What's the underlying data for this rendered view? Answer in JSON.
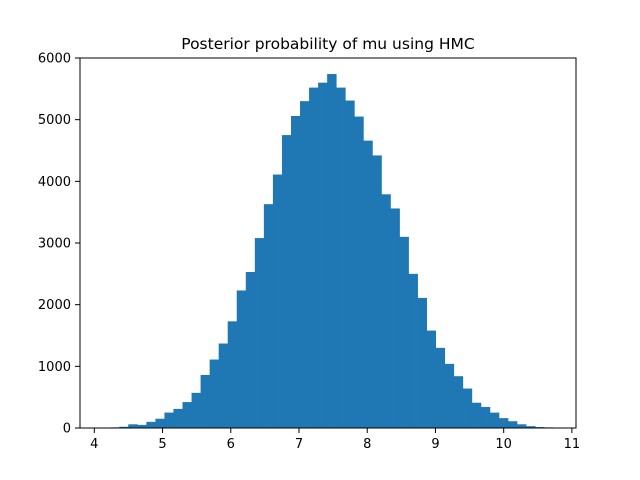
{
  "chart_data": {
    "type": "bar",
    "title": "Posterior probability of mu using HMC",
    "xlabel": "",
    "ylabel": "",
    "xlim": [
      3.79,
      11.06
    ],
    "ylim": [
      0,
      6000
    ],
    "xticks": [
      4,
      5,
      6,
      7,
      8,
      9,
      10,
      11
    ],
    "yticks": [
      0,
      1000,
      2000,
      3000,
      4000,
      5000,
      6000
    ],
    "bar_color": "#1f77b4",
    "grid": false,
    "legend": "none",
    "bins": {
      "start": 4.1,
      "width": 0.1325,
      "counts": [
        5,
        10,
        20,
        60,
        50,
        100,
        150,
        250,
        310,
        420,
        570,
        860,
        1110,
        1370,
        1730,
        2230,
        2530,
        3080,
        3630,
        4110,
        4750,
        5060,
        5300,
        5520,
        5600,
        5740,
        5520,
        5310,
        5050,
        4660,
        4420,
        3790,
        3560,
        3100,
        2500,
        2110,
        1580,
        1300,
        1040,
        840,
        640,
        410,
        340,
        250,
        160,
        110,
        60,
        30,
        15,
        10
      ]
    }
  }
}
